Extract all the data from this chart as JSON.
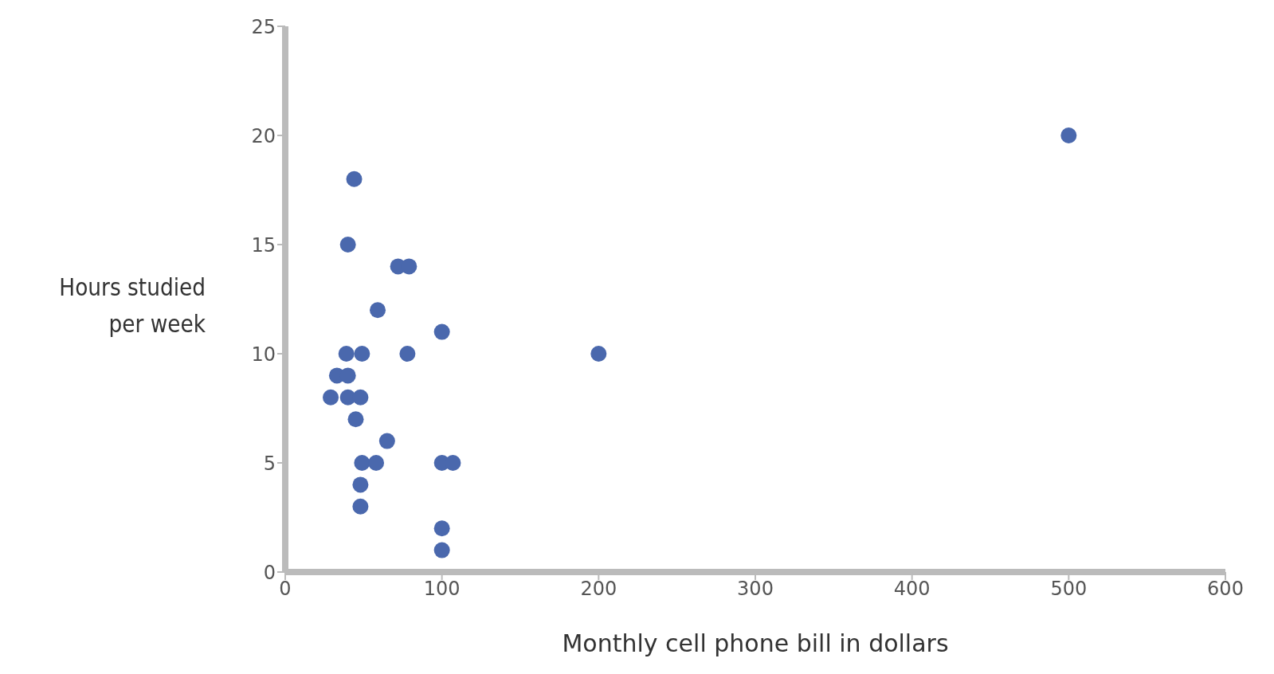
{
  "chart_data": {
    "type": "scatter",
    "xlabel": "Monthly cell phone bill in dollars",
    "ylabel": "Hours studied per week",
    "x": [
      44,
      40,
      72,
      79,
      59,
      100,
      39,
      49,
      78,
      200,
      33,
      40,
      29,
      40,
      48,
      45,
      65,
      49,
      58,
      100,
      107,
      48,
      48,
      100,
      100,
      500
    ],
    "values": [
      18,
      15,
      14,
      14,
      12,
      11,
      10,
      10,
      10,
      10,
      9,
      9,
      8,
      8,
      8,
      7,
      6,
      5,
      5,
      5,
      5,
      4,
      3,
      2,
      1,
      20
    ],
    "color": "#4a68ad",
    "marker": "circle",
    "grid": false,
    "legend": false,
    "xlim": [
      0,
      600
    ],
    "xticks": [
      0,
      100,
      200,
      300,
      400,
      500,
      600
    ],
    "ylim": [
      0,
      25
    ],
    "yticks": [
      0,
      5,
      10,
      15,
      20,
      25
    ]
  }
}
